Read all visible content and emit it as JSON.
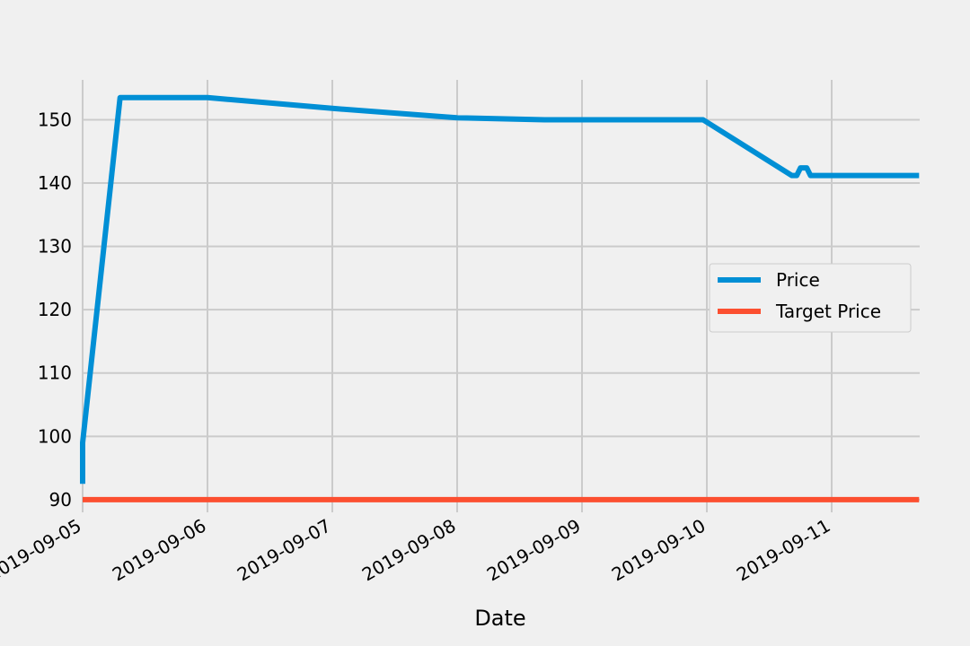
{
  "chart_data": {
    "type": "line",
    "title": "",
    "xlabel": "Date",
    "ylabel": "",
    "grid": true,
    "legend_position": "center-right",
    "x_ticks": [
      "2019-09-05",
      "2019-09-06",
      "2019-09-07",
      "2019-09-08",
      "2019-09-09",
      "2019-09-10",
      "2019-09-11"
    ],
    "y_ticks": [
      "90",
      "100",
      "110",
      "120",
      "130",
      "140",
      "150"
    ],
    "xlim_days": [
      0,
      6.7
    ],
    "ylim": [
      88,
      156.3
    ],
    "series": [
      {
        "name": "Price",
        "color": "#008fd5",
        "points": [
          {
            "day": 0.0,
            "value": 92.5
          },
          {
            "day": 0.0,
            "value": 99.0
          },
          {
            "day": 0.3,
            "value": 153.5
          },
          {
            "day": 1.0,
            "value": 153.5
          },
          {
            "day": 2.0,
            "value": 151.8
          },
          {
            "day": 3.0,
            "value": 150.3
          },
          {
            "day": 3.7,
            "value": 150.0
          },
          {
            "day": 4.97,
            "value": 150.0
          },
          {
            "day": 5.68,
            "value": 141.2
          },
          {
            "day": 5.72,
            "value": 141.2
          },
          {
            "day": 5.75,
            "value": 142.4
          },
          {
            "day": 5.8,
            "value": 142.4
          },
          {
            "day": 5.83,
            "value": 141.2
          },
          {
            "day": 6.7,
            "value": 141.2
          }
        ]
      },
      {
        "name": "Target Price",
        "color": "#fc4f30",
        "points": [
          {
            "day": 0.0,
            "value": 90
          },
          {
            "day": 6.7,
            "value": 90
          }
        ]
      }
    ]
  }
}
